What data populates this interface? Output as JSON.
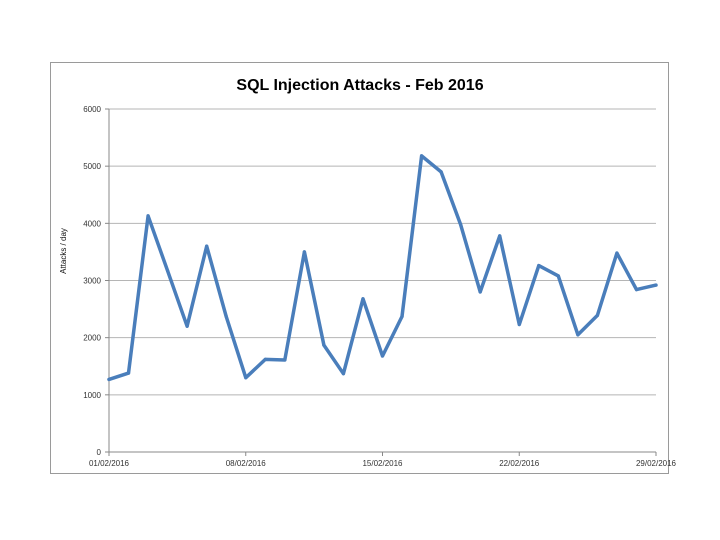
{
  "chart_data": {
    "type": "line",
    "title": "SQL Injection Attacks - Feb 2016",
    "xlabel": "",
    "ylabel": "Attacks / day",
    "ylim": [
      0,
      6000
    ],
    "yticks": [
      0,
      1000,
      2000,
      3000,
      4000,
      5000,
      6000
    ],
    "xtick_labels": [
      {
        "index": 0,
        "label": "01/02/2016"
      },
      {
        "index": 7,
        "label": "08/02/2016"
      },
      {
        "index": 14,
        "label": "15/02/2016"
      },
      {
        "index": 21,
        "label": "22/02/2016"
      },
      {
        "index": 28,
        "label": "29/02/2016"
      }
    ],
    "grid": true,
    "series": [
      {
        "name": "Attacks / day",
        "color": "#4a7ebb",
        "x": [
          "01/02/2016",
          "02/02/2016",
          "03/02/2016",
          "04/02/2016",
          "05/02/2016",
          "06/02/2016",
          "07/02/2016",
          "08/02/2016",
          "09/02/2016",
          "10/02/2016",
          "11/02/2016",
          "12/02/2016",
          "13/02/2016",
          "14/02/2016",
          "15/02/2016",
          "16/02/2016",
          "17/02/2016",
          "18/02/2016",
          "19/02/2016",
          "20/02/2016",
          "21/02/2016",
          "22/02/2016",
          "23/02/2016",
          "24/02/2016",
          "25/02/2016",
          "26/02/2016",
          "27/02/2016",
          "28/02/2016",
          "29/02/2016"
        ],
        "values": [
          1270,
          1380,
          4130,
          3170,
          2200,
          3600,
          2370,
          1300,
          1620,
          1610,
          3500,
          1870,
          1370,
          2680,
          1680,
          2370,
          5180,
          4900,
          3980,
          2800,
          3780,
          2230,
          3260,
          3080,
          2050,
          2390,
          3480,
          2840,
          2920
        ]
      }
    ]
  }
}
